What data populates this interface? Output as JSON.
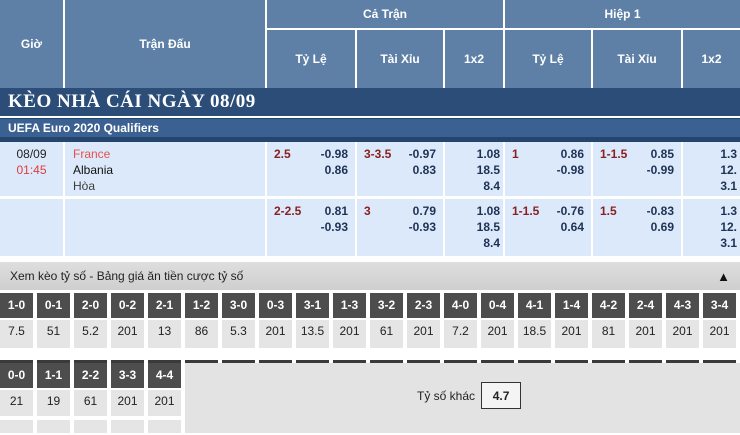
{
  "colors": {
    "header_blue": "#5e80a7",
    "banner_blue": "#2b4d78",
    "league_blue": "#3a6191",
    "row_light_blue": "#dbe9fb",
    "handicap_maroon": "#8b2020",
    "odds_navy": "#1f3255",
    "team_red": "#e8504c",
    "score_cell_dark": "#4d4d4d",
    "score_cell_gray": "#e5e5e5"
  },
  "table_header": {
    "time_label": "Giờ",
    "match_label": "Trận Đấu",
    "group_full": "Cả Trận",
    "group_half": "Hiệp 1",
    "sub_hdp": "Tỷ Lệ",
    "sub_ou": "Tài Xỉu",
    "sub_1x2": "1x2"
  },
  "banner": {
    "title": "KÈO NHÀ CÁI NGÀY 08/09"
  },
  "league": {
    "name": "UEFA Euro 2020 Qualifiers"
  },
  "match": {
    "date": "08/09",
    "kickoff": "01:45",
    "home": "France",
    "away": "Albania",
    "draw_label": "Hòa"
  },
  "rows": [
    {
      "ft_hdp": {
        "line": "2.5",
        "o1": "-0.98",
        "o2": "0.86"
      },
      "ft_ou": {
        "line": "3-3.5",
        "o1": "-0.97",
        "o2": "0.83"
      },
      "ft_1x2": {
        "h": "1.08",
        "a": "18.5",
        "d": "8.4"
      },
      "h1_hdp": {
        "line": "1",
        "o1": "0.86",
        "o2": "-0.98"
      },
      "h1_ou": {
        "line": "1-1.5",
        "o1": "0.85",
        "o2": "-0.99"
      },
      "h1_1x2": {
        "h": "1.3",
        "a": "12.",
        "d": "3.1"
      }
    },
    {
      "ft_hdp": {
        "line": "2-2.5",
        "o1": "0.81",
        "o2": "-0.93"
      },
      "ft_ou": {
        "line": "3",
        "o1": "0.79",
        "o2": "-0.93"
      },
      "ft_1x2": {
        "h": "1.08",
        "a": "18.5",
        "d": "8.4"
      },
      "h1_hdp": {
        "line": "1-1.5",
        "o1": "-0.76",
        "o2": "0.64"
      },
      "h1_ou": {
        "line": "1.5",
        "o1": "-0.83",
        "o2": "0.69"
      },
      "h1_1x2": {
        "h": "1.3",
        "a": "12.",
        "d": "3.1"
      }
    }
  ],
  "score": {
    "title": "Xem kèo tỷ số - Bảng giá ăn tiền cược tỷ số",
    "collapse_icon": "▲",
    "row1": [
      {
        "s": "1-0",
        "o": "7.5"
      },
      {
        "s": "0-1",
        "o": "51"
      },
      {
        "s": "2-0",
        "o": "5.2"
      },
      {
        "s": "0-2",
        "o": "201"
      },
      {
        "s": "2-1",
        "o": "13"
      },
      {
        "s": "1-2",
        "o": "86"
      },
      {
        "s": "3-0",
        "o": "5.3"
      },
      {
        "s": "0-3",
        "o": "201"
      },
      {
        "s": "3-1",
        "o": "13.5"
      },
      {
        "s": "1-3",
        "o": "201"
      },
      {
        "s": "3-2",
        "o": "61"
      },
      {
        "s": "2-3",
        "o": "201"
      },
      {
        "s": "4-0",
        "o": "7.2"
      },
      {
        "s": "0-4",
        "o": "201"
      },
      {
        "s": "4-1",
        "o": "18.5"
      },
      {
        "s": "1-4",
        "o": "201"
      },
      {
        "s": "4-2",
        "o": "81"
      },
      {
        "s": "2-4",
        "o": "201"
      },
      {
        "s": "4-3",
        "o": "201"
      },
      {
        "s": "3-4",
        "o": "201"
      }
    ],
    "row2": [
      {
        "s": "0-0",
        "o": "21"
      },
      {
        "s": "1-1",
        "o": "19"
      },
      {
        "s": "2-2",
        "o": "61"
      },
      {
        "s": "3-3",
        "o": "201"
      },
      {
        "s": "4-4",
        "o": "201"
      }
    ],
    "other": {
      "label": "Tỷ số khác",
      "value": "4.7"
    }
  }
}
